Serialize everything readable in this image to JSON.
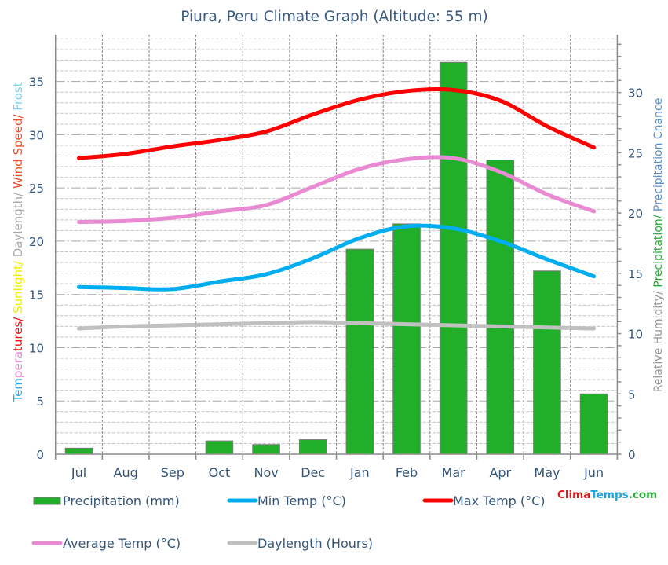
{
  "page": {
    "title": "Piura, Peru Climate Graph (Altitude: 55 m)"
  },
  "logo": {
    "parts": [
      {
        "text": "Clima",
        "color": "#e8141c"
      },
      {
        "text": "Temps",
        "color": "#1ba6e0"
      },
      {
        "text": ".com",
        "color": "#2aa838"
      }
    ]
  },
  "legend": {
    "precipitation": "Precipitation (mm)",
    "min_temp": "Min Temp (°C)",
    "max_temp": "Max Temp (°C)",
    "avg_temp": "Average Temp (°C)",
    "daylength": "Daylength (Hours)"
  },
  "colors": {
    "precipitation": "#21af2a",
    "min_temp": "#00aeef",
    "max_temp": "#ff0000",
    "avg_temp": "#e98bd3",
    "daylength": "#c0c0c0"
  },
  "chart_data": {
    "type": "bar",
    "title": "Piura, Peru Climate Graph (Altitude: 55 m)",
    "xlabel": "",
    "categories": [
      "Jul",
      "Aug",
      "Sep",
      "Oct",
      "Nov",
      "Dec",
      "Jan",
      "Feb",
      "Mar",
      "Apr",
      "May",
      "Jun"
    ],
    "ylabel_left": "Temperatures/ Sunlight/ Daylength/ Wind Speed/ Frost",
    "ylabel_left_parts": [
      {
        "text": "Tem",
        "color": "#29abe2"
      },
      {
        "text": "pera",
        "color": "#e68ad3"
      },
      {
        "text": "tures/",
        "color": "#ee1111"
      },
      {
        "text": " Sunlight/",
        "color": "#f2ee00"
      },
      {
        "text": " Daylength/",
        "color": "#aaaaaa"
      },
      {
        "text": " Wind Speed/",
        "color": "#e8502a"
      },
      {
        "text": " Frost",
        "color": "#7fd0ea"
      }
    ],
    "ylabel_right": "Relative Humidity/ Precipitation/ Precipitation Chance",
    "ylabel_right_parts": [
      {
        "text": "Relative Humidity/",
        "color": "#999999"
      },
      {
        "text": " Precipitation/",
        "color": "#2aa838"
      },
      {
        "text": " Precipitation Chance",
        "color": "#5b8fc9"
      }
    ],
    "left_axis": {
      "ylim": [
        0,
        39.4
      ],
      "ticks": [
        0,
        5,
        10,
        15,
        20,
        25,
        30,
        35
      ]
    },
    "right_axis": {
      "ylim": [
        0,
        34.8
      ],
      "ticks": [
        0,
        5,
        10,
        15,
        20,
        25,
        30
      ]
    },
    "grid": true,
    "legend_position": "bottom",
    "series": [
      {
        "key": "precipitation",
        "name": "Precipitation (mm)",
        "type": "bar",
        "axis": "right",
        "color": "#21af2a",
        "values": [
          0.5,
          0,
          0,
          1.1,
          0.8,
          1.2,
          17.0,
          19.1,
          32.5,
          24.4,
          15.2,
          5.0
        ]
      },
      {
        "key": "daylength",
        "name": "Daylength (Hours)",
        "type": "line",
        "axis": "left",
        "color": "#c0c0c0",
        "values": [
          11.8,
          12.0,
          12.1,
          12.2,
          12.3,
          12.4,
          12.3,
          12.2,
          12.1,
          12.0,
          11.9,
          11.8
        ]
      },
      {
        "key": "min_temp",
        "name": "Min Temp (°C)",
        "type": "line",
        "axis": "left",
        "color": "#00aeef",
        "values": [
          15.7,
          15.6,
          15.5,
          16.2,
          16.9,
          18.4,
          20.3,
          21.4,
          21.2,
          20.0,
          18.3,
          16.7
        ]
      },
      {
        "key": "avg_temp",
        "name": "Average Temp (°C)",
        "type": "line",
        "axis": "left",
        "color": "#e98bd3",
        "values": [
          21.8,
          21.9,
          22.2,
          22.8,
          23.4,
          25.1,
          26.8,
          27.7,
          27.8,
          26.5,
          24.4,
          22.8
        ]
      },
      {
        "key": "max_temp",
        "name": "Max Temp (°C)",
        "type": "line",
        "axis": "left",
        "color": "#ff0000",
        "values": [
          27.8,
          28.2,
          28.9,
          29.5,
          30.3,
          31.9,
          33.3,
          34.1,
          34.2,
          33.2,
          30.8,
          28.8
        ]
      }
    ]
  }
}
